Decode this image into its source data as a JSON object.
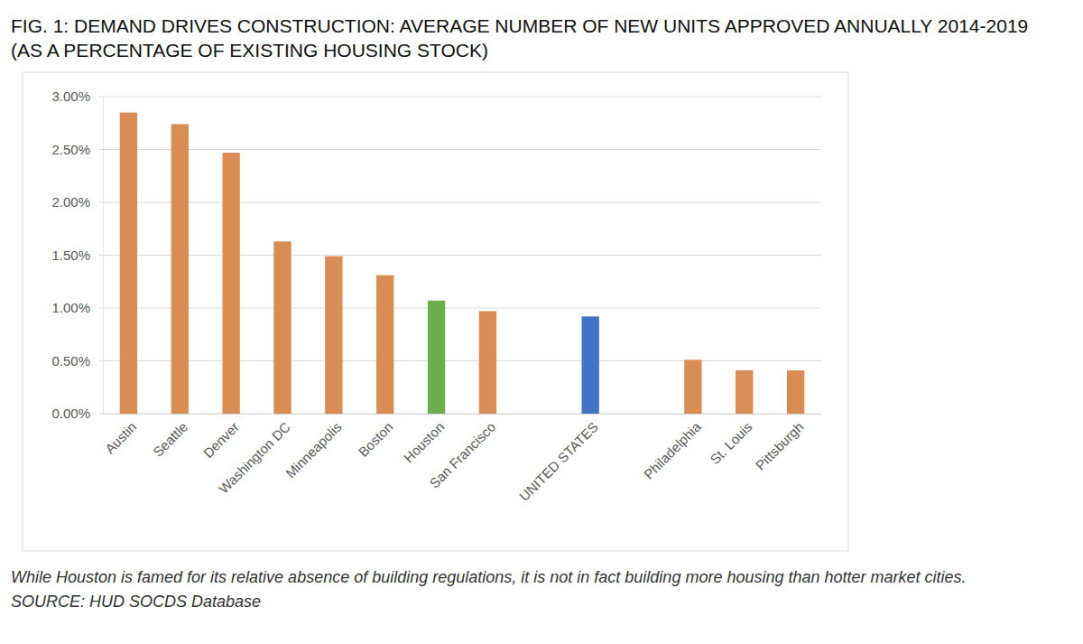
{
  "chart_data": {
    "type": "bar",
    "title": "FIG. 1: DEMAND DRIVES CONSTRUCTION: AVERAGE NUMBER OF NEW UNITS APPROVED ANNUALLY 2014-2019 (AS A PERCENTAGE OF EXISTING HOUSING STOCK)",
    "caption": "While Houston is famed for its relative absence of building regulations, it is not in fact building more housing than hotter market cities. SOURCE: HUD SOCDS Database",
    "categories": [
      "Austin",
      "Seattle",
      "Denver",
      "Washington DC",
      "Minneapolis",
      "Boston",
      "Houston",
      "San Francisco",
      null,
      "UNITED STATES",
      null,
      "Philadelphia",
      "St. Louis",
      "Pittsburgh"
    ],
    "values": [
      2.85,
      2.74,
      2.47,
      1.63,
      1.49,
      1.31,
      1.07,
      0.97,
      null,
      0.92,
      null,
      0.51,
      0.41,
      0.41
    ],
    "colors": [
      "#d98c54",
      "#d98c54",
      "#d98c54",
      "#d98c54",
      "#d98c54",
      "#d98c54",
      "#6cad4d",
      "#d98c54",
      null,
      "#4472c4",
      null,
      "#d98c54",
      "#d98c54",
      "#d98c54"
    ],
    "ylim": [
      0,
      3
    ],
    "yticks": [
      {
        "value": 0,
        "label": "0.00%"
      },
      {
        "value": 0.5,
        "label": "0.50%"
      },
      {
        "value": 1,
        "label": "1.00%"
      },
      {
        "value": 1.5,
        "label": "1.50%"
      },
      {
        "value": 2,
        "label": "2.00%"
      },
      {
        "value": 2.5,
        "label": "2.50%"
      },
      {
        "value": 3,
        "label": "3.00%"
      }
    ],
    "grid": true
  }
}
